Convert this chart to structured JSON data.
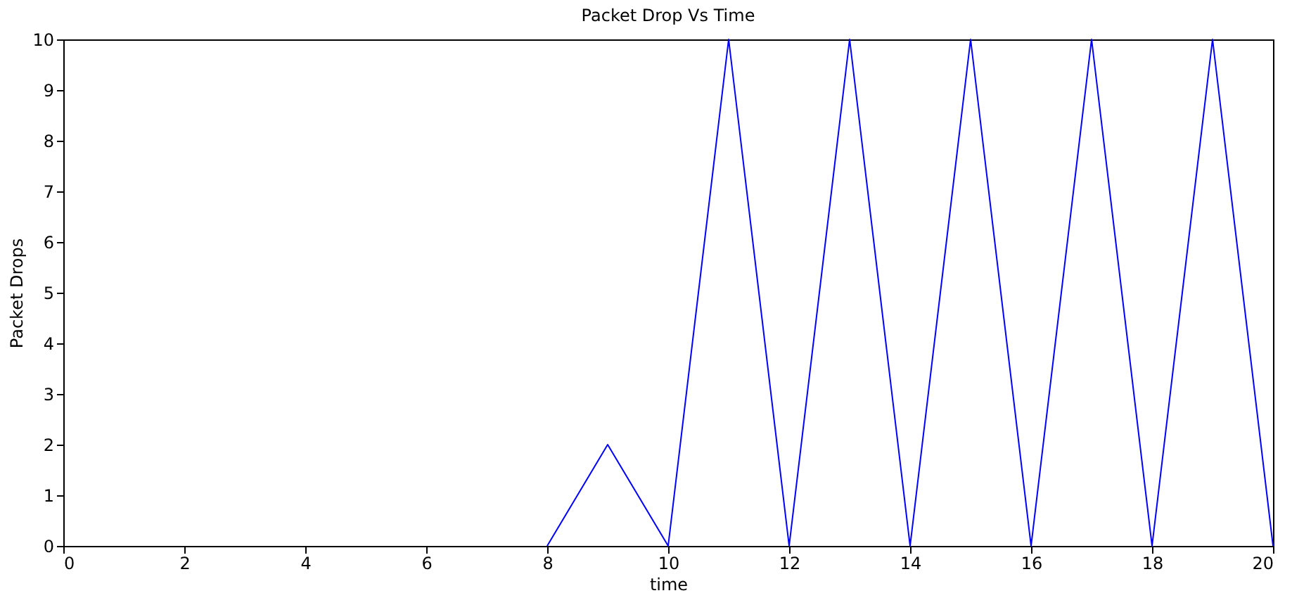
{
  "chart_data": {
    "type": "line",
    "title": "Packet Drop Vs Time",
    "xlabel": "time",
    "ylabel": "Packet Drops",
    "x": [
      8,
      9,
      10,
      11,
      12,
      13,
      14,
      15,
      16,
      17,
      18,
      19,
      20
    ],
    "series": [
      {
        "color": "#0000ff",
        "values": [
          0,
          2,
          0,
          10,
          0,
          10,
          0,
          10,
          0,
          10,
          0,
          10,
          0
        ]
      }
    ],
    "xlim": [
      0,
      20
    ],
    "xticks": [
      0,
      2,
      4,
      6,
      8,
      10,
      12,
      14,
      16,
      18,
      20
    ],
    "ylim": [
      0,
      10
    ],
    "yticks": [
      0,
      1,
      2,
      3,
      4,
      5,
      6,
      7,
      8,
      9,
      10
    ],
    "grid": false,
    "legend": false,
    "marker": "none",
    "line_style": "solid"
  }
}
